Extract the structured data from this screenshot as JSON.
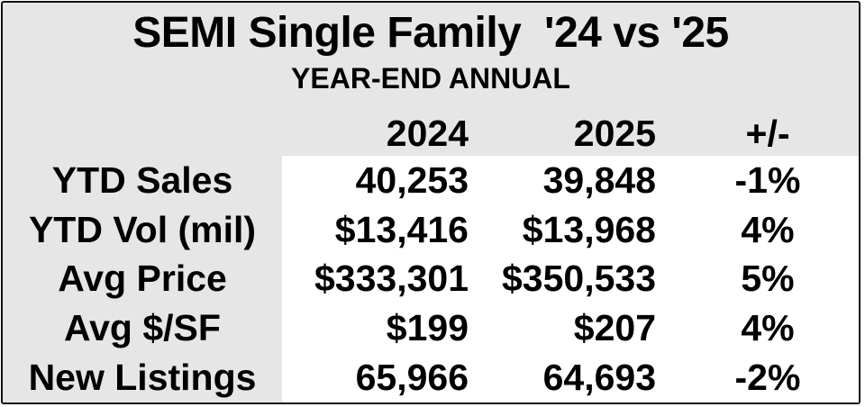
{
  "chart_data": {
    "type": "table",
    "title": "SEMI Single Family  '24 vs '25",
    "subtitle": "YEAR-END ANNUAL",
    "columns": [
      "2024",
      "2025",
      "+/-"
    ],
    "rows": [
      {
        "label": "YTD Sales",
        "values": [
          "40,253",
          "39,848"
        ],
        "change": "-1%"
      },
      {
        "label": "YTD Vol (mil)",
        "values": [
          "$13,416",
          "$13,968"
        ],
        "change": "4%"
      },
      {
        "label": "Avg Price",
        "values": [
          "$333,301",
          "$350,533"
        ],
        "change": "5%"
      },
      {
        "label": "Avg $/SF",
        "values": [
          "$199",
          "$207"
        ],
        "change": "4%"
      },
      {
        "label": "New Listings",
        "values": [
          "65,966",
          "64,693"
        ],
        "change": "-2%"
      }
    ],
    "layout": {
      "legend": "none",
      "grid": "off"
    }
  },
  "colors": {
    "card_background": "#e7e6e6",
    "data_background": "#ffffff",
    "border": "#111111",
    "text": "#000000"
  }
}
